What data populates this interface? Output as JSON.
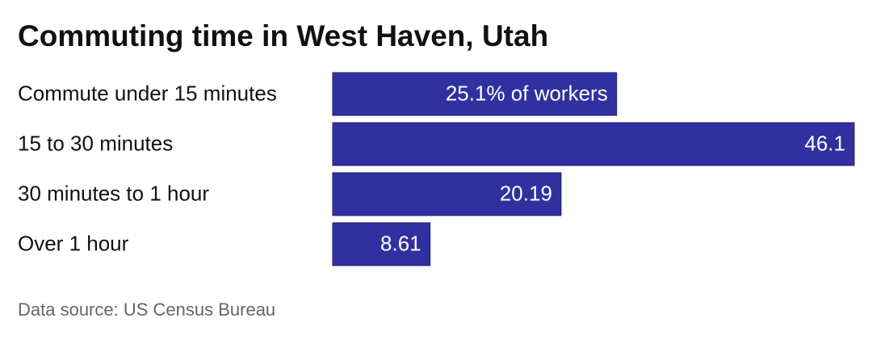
{
  "chart_data": {
    "type": "bar",
    "orientation": "horizontal",
    "title": "Commuting time in West Haven, Utah",
    "categories": [
      "Commute under 15 minutes",
      "15 to 30 minutes",
      "30 minutes to 1 hour",
      "Over 1 hour"
    ],
    "values": [
      25.1,
      46.1,
      20.19,
      8.61
    ],
    "value_labels": [
      "25.1% of workers",
      "46.1",
      "20.19",
      "8.61"
    ],
    "color": "#3130a0",
    "source": "Data source: US Census Bureau"
  }
}
